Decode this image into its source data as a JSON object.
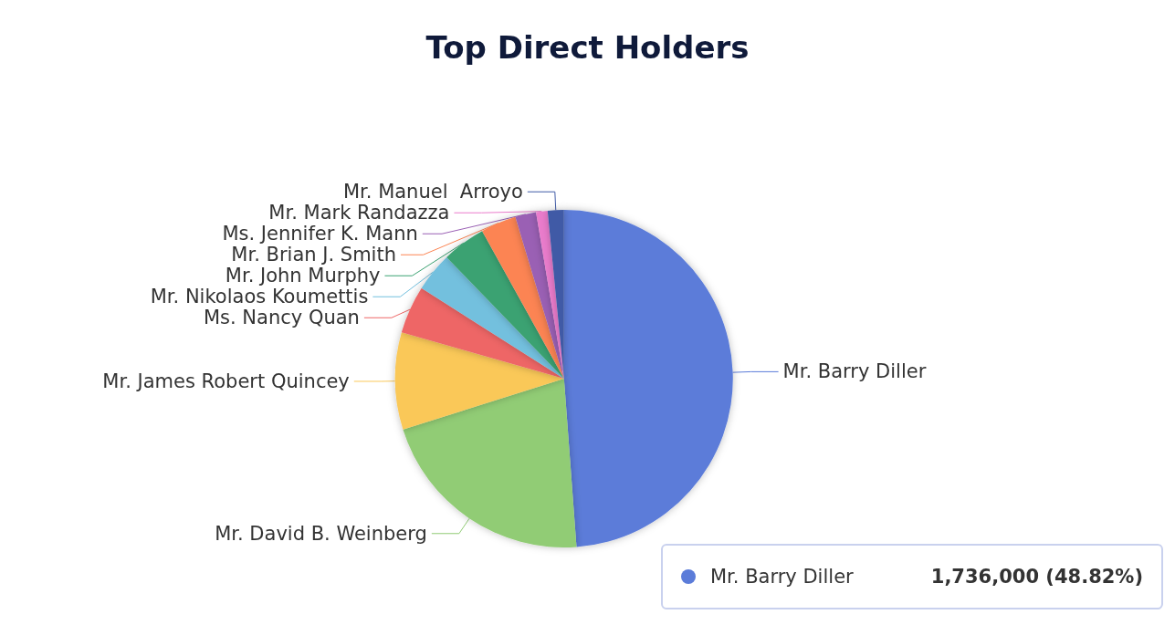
{
  "chart_data": {
    "type": "pie",
    "title": "Top Direct Holders",
    "categories": [
      "Mr. Barry Diller",
      "Mr. David B. Weinberg",
      "Mr. James Robert Quincey",
      "Ms. Nancy Quan",
      "Mr. Nikolaos Koumettis",
      "Mr. John Murphy",
      "Mr. Brian J. Smith",
      "Ms. Jennifer K. Mann",
      "Mr. Mark Randazza",
      "Mr. Manuel  Arroyo"
    ],
    "values": [
      48.82,
      21.3,
      9.3,
      4.6,
      3.75,
      4.18,
      3.4,
      2.0,
      1.1,
      1.55
    ],
    "colors": [
      "#5b7cd9",
      "#91cc75",
      "#fac858",
      "#ee6666",
      "#73c0de",
      "#3ba272",
      "#fc8452",
      "#9a60b4",
      "#ea7ccc",
      "#3f5aa6"
    ],
    "annotations": [
      "1,736,000 (48.82%)"
    ]
  }
}
